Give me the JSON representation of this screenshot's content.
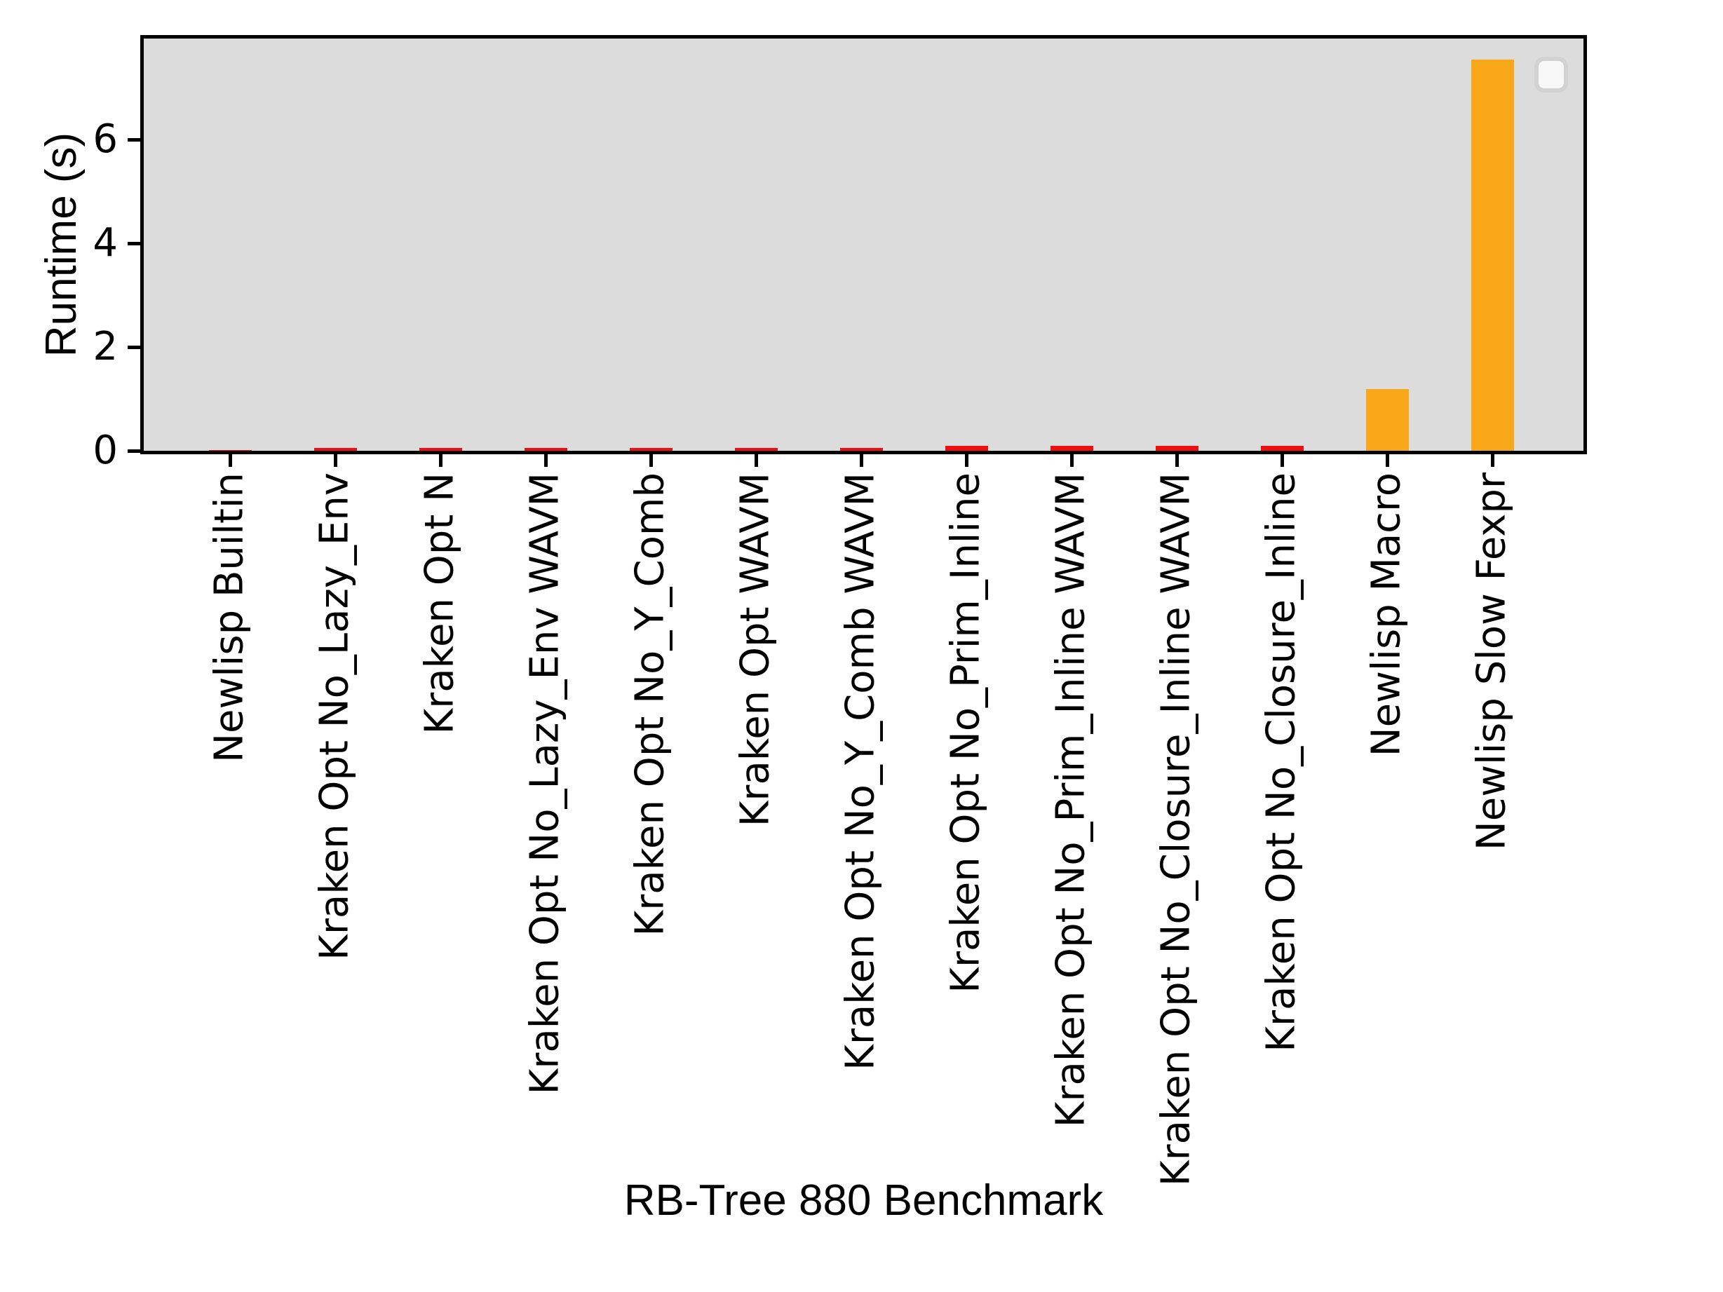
{
  "chart_data": {
    "type": "bar",
    "title": "",
    "xlabel": "RB-Tree 880 Benchmark",
    "ylabel": "Runtime (s)",
    "categories": [
      "Newlisp Builtin",
      "Kraken Opt No_Lazy_Env",
      "Kraken Opt N",
      "Kraken Opt No_Lazy_Env WAVM",
      "Kraken Opt No_Y_Comb",
      "Kraken Opt WAVM",
      "Kraken Opt No_Y_Comb WAVM",
      "Kraken Opt No_Prim_Inline",
      "Kraken Opt No_Prim_Inline WAVM",
      "Kraken Opt No_Closure_Inline WAVM",
      "Kraken Opt No_Closure_Inline",
      "Newlisp Macro",
      "Newlisp Slow Fexpr"
    ],
    "values": [
      0.01,
      0.05,
      0.05,
      0.06,
      0.06,
      0.06,
      0.06,
      0.09,
      0.1,
      0.1,
      0.1,
      1.19,
      7.54
    ],
    "bar_colors": [
      "#f10d0d",
      "#f10d0d",
      "#f10d0d",
      "#f10d0d",
      "#f10d0d",
      "#f10d0d",
      "#f10d0d",
      "#f10d0d",
      "#f10d0d",
      "#f10d0d",
      "#f10d0d",
      "#f9a81a",
      "#f9a81a"
    ],
    "yticks": [
      0,
      2,
      4,
      6
    ],
    "ylim": [
      0,
      7.95
    ],
    "grid": false,
    "plot_background": "#dcdcdc",
    "spine_color": "#000000",
    "legend": {
      "position": "upper right",
      "entries": []
    }
  }
}
